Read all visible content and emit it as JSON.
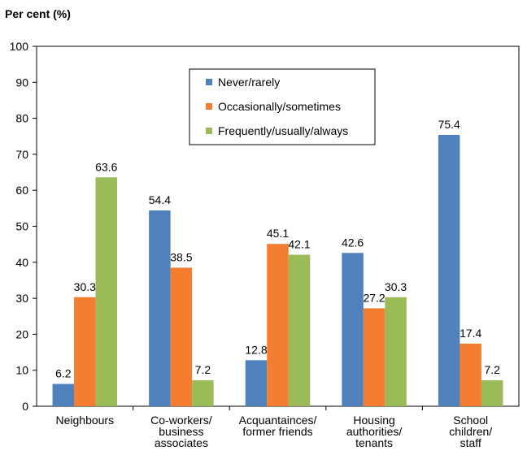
{
  "chart_data": {
    "type": "bar",
    "title": "Per cent (%)",
    "categories": [
      "Neighbours",
      "Co-workers/\nbusiness\nassociates",
      "Acquantainces/\nformer friends",
      "Housing\nauthorities/\ntenants",
      "School\nchildren/\nstaff"
    ],
    "series": [
      {
        "name": "Never/rarely",
        "color": "#4f81bd",
        "values": [
          6.2,
          54.4,
          12.8,
          42.6,
          75.4
        ]
      },
      {
        "name": "Occasionally/sometimes",
        "color": "#f57d2f",
        "values": [
          30.3,
          38.5,
          45.1,
          27.2,
          17.4
        ]
      },
      {
        "name": "Frequently/usually/always",
        "color": "#9bbb59",
        "values": [
          63.6,
          7.2,
          42.1,
          30.3,
          7.2
        ]
      }
    ],
    "ylim": [
      0,
      100
    ],
    "yticks": [
      0,
      10,
      20,
      30,
      40,
      50,
      60,
      70,
      80,
      90,
      100
    ],
    "grid": false,
    "legend": "top-center"
  }
}
